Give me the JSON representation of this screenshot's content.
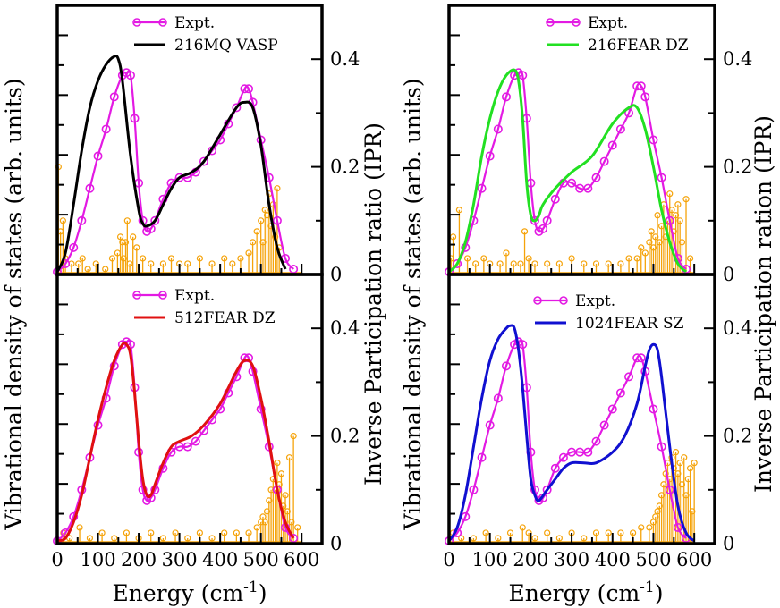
{
  "figure": {
    "ylabel_left_row": "Vibrational density of states (arb. units)",
    "ylabel_right_row": "Inverse Participation ratio (IPR)",
    "ylabel_right_row_alt": "Inverse Participation ration (IPR)",
    "xlabel_main": "Energy (cm",
    "xlabel_sup": "-1",
    "xlabel_close": ")"
  },
  "colors": {
    "expt": "#e31ae3",
    "mq_vasp": "#000000",
    "fear_216": "#22e022",
    "fear_512": "#e01010",
    "fear_1024": "#1010d0",
    "ipr": "#f5a30a"
  },
  "chart_data": [
    {
      "type": "line",
      "panel": "top-left",
      "xlim": [
        0,
        650
      ],
      "ylim_ipr": [
        0,
        0.5
      ],
      "x_ticks": [],
      "ipr_ticks": [
        "0",
        "0.2",
        "0.4"
      ],
      "legend": [
        "Expt.",
        "216MQ VASP"
      ],
      "series": [
        {
          "name": "Expt.",
          "color": "#e31ae3",
          "markers": true,
          "x": [
            0,
            20,
            40,
            60,
            80,
            100,
            120,
            140,
            160,
            170,
            180,
            190,
            200,
            210,
            220,
            230,
            240,
            260,
            280,
            300,
            320,
            340,
            360,
            380,
            400,
            420,
            440,
            460,
            470,
            480,
            500,
            520,
            540,
            560,
            580
          ],
          "y": [
            0.005,
            0.02,
            0.05,
            0.1,
            0.16,
            0.22,
            0.27,
            0.33,
            0.37,
            0.375,
            0.37,
            0.29,
            0.17,
            0.1,
            0.08,
            0.085,
            0.1,
            0.14,
            0.17,
            0.18,
            0.18,
            0.19,
            0.21,
            0.23,
            0.25,
            0.28,
            0.31,
            0.345,
            0.345,
            0.32,
            0.25,
            0.18,
            0.1,
            0.03,
            0.01
          ]
        },
        {
          "name": "216MQ VASP",
          "color": "#000000",
          "x": [
            0,
            20,
            40,
            60,
            80,
            100,
            120,
            140,
            150,
            160,
            180,
            200,
            210,
            220,
            240,
            260,
            280,
            300,
            330,
            360,
            400,
            440,
            460,
            480,
            500,
            520,
            540,
            560
          ],
          "y": [
            0.005,
            0.04,
            0.13,
            0.23,
            0.31,
            0.36,
            0.39,
            0.405,
            0.4,
            0.36,
            0.22,
            0.12,
            0.095,
            0.09,
            0.1,
            0.13,
            0.16,
            0.18,
            0.19,
            0.21,
            0.26,
            0.31,
            0.32,
            0.31,
            0.24,
            0.13,
            0.05,
            0.01
          ]
        }
      ],
      "ipr": {
        "x": [
          3,
          8,
          14,
          20,
          35,
          52,
          62,
          75,
          95,
          118,
          135,
          148,
          155,
          160,
          163,
          168,
          172,
          178,
          186,
          195,
          210,
          230,
          260,
          280,
          300,
          320,
          350,
          380,
          410,
          430,
          450,
          470,
          480,
          490,
          500,
          505,
          510,
          515,
          520,
          525,
          530,
          535,
          540,
          545
        ],
        "y": [
          0.2,
          0.08,
          0.1,
          0.03,
          0.02,
          0.02,
          0.03,
          0.01,
          0.02,
          0.01,
          0.03,
          0.04,
          0.07,
          0.06,
          0.03,
          0.06,
          0.1,
          0.02,
          0.07,
          0.05,
          0.03,
          0.02,
          0.02,
          0.03,
          0.02,
          0.02,
          0.03,
          0.02,
          0.03,
          0.02,
          0.03,
          0.04,
          0.06,
          0.08,
          0.1,
          0.06,
          0.12,
          0.11,
          0.15,
          0.09,
          0.13,
          0.07,
          0.16,
          0.05
        ]
      }
    },
    {
      "type": "line",
      "panel": "top-right",
      "xlim": [
        0,
        650
      ],
      "ylim_ipr": [
        0,
        0.5
      ],
      "x_ticks": [],
      "ipr_ticks": [
        "0",
        "0.2",
        "0.4"
      ],
      "legend": [
        "Expt.",
        "216FEAR DZ"
      ],
      "series": [
        {
          "name": "Expt.",
          "color": "#e31ae3",
          "markers": true,
          "x": [
            0,
            20,
            40,
            60,
            80,
            100,
            120,
            140,
            160,
            170,
            180,
            190,
            200,
            210,
            220,
            230,
            240,
            260,
            280,
            300,
            320,
            340,
            360,
            380,
            400,
            420,
            440,
            460,
            470,
            480,
            500,
            520,
            540,
            560,
            580
          ],
          "y": [
            0.005,
            0.02,
            0.05,
            0.1,
            0.16,
            0.22,
            0.27,
            0.33,
            0.37,
            0.375,
            0.37,
            0.29,
            0.17,
            0.1,
            0.08,
            0.085,
            0.1,
            0.14,
            0.17,
            0.17,
            0.16,
            0.16,
            0.18,
            0.21,
            0.24,
            0.27,
            0.3,
            0.35,
            0.35,
            0.33,
            0.25,
            0.18,
            0.1,
            0.03,
            0.01
          ]
        },
        {
          "name": "216FEAR DZ",
          "color": "#22e022",
          "x": [
            0,
            20,
            40,
            60,
            80,
            100,
            120,
            140,
            160,
            170,
            180,
            190,
            200,
            210,
            220,
            230,
            260,
            300,
            350,
            400,
            440,
            460,
            480,
            500,
            520,
            540,
            560,
            580
          ],
          "y": [
            0.005,
            0.02,
            0.06,
            0.13,
            0.22,
            0.29,
            0.34,
            0.37,
            0.38,
            0.36,
            0.29,
            0.17,
            0.11,
            0.1,
            0.11,
            0.13,
            0.16,
            0.19,
            0.22,
            0.28,
            0.31,
            0.31,
            0.27,
            0.2,
            0.12,
            0.06,
            0.02,
            0.005
          ]
        }
      ],
      "ipr": {
        "x": [
          5,
          10,
          25,
          45,
          65,
          85,
          100,
          125,
          140,
          158,
          175,
          185,
          195,
          210,
          240,
          270,
          300,
          330,
          360,
          390,
          420,
          440,
          460,
          470,
          480,
          490,
          495,
          500,
          505,
          510,
          515,
          520,
          525,
          530,
          535,
          540,
          545,
          550,
          555,
          560,
          565,
          570,
          580,
          590
        ],
        "y": [
          0.03,
          0.07,
          0.12,
          0.03,
          0.02,
          0.03,
          0.02,
          0.02,
          0.04,
          0.02,
          0.02,
          0.08,
          0.03,
          0.02,
          0.02,
          0.02,
          0.03,
          0.02,
          0.02,
          0.02,
          0.02,
          0.03,
          0.03,
          0.05,
          0.04,
          0.06,
          0.08,
          0.05,
          0.07,
          0.11,
          0.06,
          0.09,
          0.13,
          0.07,
          0.1,
          0.15,
          0.12,
          0.08,
          0.11,
          0.13,
          0.1,
          0.06,
          0.14,
          0.03
        ]
      }
    },
    {
      "type": "line",
      "panel": "bottom-left",
      "xlim": [
        0,
        650
      ],
      "ylim_ipr": [
        0,
        0.5
      ],
      "x_ticks": [
        "0",
        "100",
        "200",
        "300",
        "400",
        "500",
        "600"
      ],
      "ipr_ticks": [
        "0",
        "0.2",
        "0.4"
      ],
      "legend": [
        "Expt.",
        "512FEAR DZ"
      ],
      "series": [
        {
          "name": "Expt.",
          "color": "#e31ae3",
          "markers": true,
          "x": [
            0,
            20,
            40,
            60,
            80,
            100,
            120,
            140,
            160,
            170,
            180,
            190,
            200,
            210,
            220,
            230,
            240,
            260,
            280,
            300,
            320,
            340,
            360,
            380,
            400,
            420,
            440,
            460,
            470,
            480,
            500,
            520,
            540,
            560,
            580
          ],
          "y": [
            0.005,
            0.02,
            0.05,
            0.1,
            0.16,
            0.22,
            0.27,
            0.33,
            0.37,
            0.375,
            0.37,
            0.29,
            0.17,
            0.1,
            0.08,
            0.085,
            0.1,
            0.14,
            0.17,
            0.18,
            0.18,
            0.19,
            0.21,
            0.23,
            0.25,
            0.28,
            0.31,
            0.345,
            0.345,
            0.32,
            0.25,
            0.18,
            0.1,
            0.03,
            0.01
          ]
        },
        {
          "name": "512FEAR DZ",
          "color": "#e01010",
          "x": [
            0,
            20,
            40,
            60,
            80,
            100,
            120,
            140,
            160,
            170,
            180,
            190,
            200,
            210,
            220,
            230,
            240,
            260,
            280,
            300,
            330,
            360,
            400,
            440,
            460,
            480,
            500,
            520,
            540,
            560,
            580
          ],
          "y": [
            0.005,
            0.01,
            0.04,
            0.09,
            0.16,
            0.23,
            0.29,
            0.34,
            0.37,
            0.37,
            0.35,
            0.28,
            0.19,
            0.12,
            0.09,
            0.09,
            0.11,
            0.15,
            0.18,
            0.19,
            0.2,
            0.22,
            0.26,
            0.32,
            0.34,
            0.33,
            0.27,
            0.19,
            0.1,
            0.04,
            0.01
          ]
        }
      ],
      "ipr": {
        "x": [
          15,
          30,
          55,
          80,
          110,
          140,
          170,
          200,
          230,
          260,
          290,
          320,
          350,
          380,
          410,
          440,
          470,
          490,
          500,
          505,
          510,
          515,
          520,
          525,
          530,
          535,
          540,
          545,
          550,
          555,
          560,
          565,
          570,
          575,
          580,
          590
        ],
        "y": [
          0.02,
          0.01,
          0.03,
          0.01,
          0.02,
          0.01,
          0.02,
          0.01,
          0.02,
          0.01,
          0.02,
          0.01,
          0.02,
          0.01,
          0.02,
          0.02,
          0.02,
          0.03,
          0.04,
          0.05,
          0.04,
          0.06,
          0.08,
          0.1,
          0.12,
          0.1,
          0.15,
          0.11,
          0.13,
          0.07,
          0.09,
          0.06,
          0.16,
          0.04,
          0.2,
          0.03
        ]
      }
    },
    {
      "type": "line",
      "panel": "bottom-right",
      "xlim": [
        0,
        650
      ],
      "ylim_ipr": [
        0,
        0.5
      ],
      "x_ticks": [
        "0",
        "100",
        "200",
        "300",
        "400",
        "500",
        "600"
      ],
      "ipr_ticks": [
        "0",
        "0.2",
        "0.4"
      ],
      "legend": [
        "Expt.",
        "1024FEAR SZ"
      ],
      "series": [
        {
          "name": "Expt.",
          "color": "#e31ae3",
          "markers": true,
          "x": [
            0,
            20,
            40,
            60,
            80,
            100,
            120,
            140,
            160,
            170,
            180,
            190,
            200,
            210,
            220,
            230,
            240,
            260,
            280,
            300,
            320,
            340,
            360,
            380,
            400,
            420,
            440,
            460,
            470,
            480,
            500,
            520,
            540,
            560,
            580
          ],
          "y": [
            0.005,
            0.02,
            0.05,
            0.1,
            0.16,
            0.22,
            0.27,
            0.33,
            0.37,
            0.375,
            0.37,
            0.29,
            0.17,
            0.1,
            0.08,
            0.085,
            0.1,
            0.14,
            0.16,
            0.17,
            0.17,
            0.17,
            0.19,
            0.22,
            0.25,
            0.28,
            0.31,
            0.345,
            0.345,
            0.32,
            0.25,
            0.18,
            0.1,
            0.03,
            0.01
          ]
        },
        {
          "name": "1024FEAR SZ",
          "color": "#1010d0",
          "x": [
            0,
            20,
            40,
            60,
            80,
            100,
            120,
            140,
            150,
            160,
            170,
            180,
            190,
            200,
            210,
            220,
            240,
            260,
            280,
            300,
            330,
            360,
            400,
            430,
            460,
            480,
            490,
            500,
            510,
            520,
            540,
            560,
            580,
            600
          ],
          "y": [
            0.005,
            0.03,
            0.09,
            0.18,
            0.27,
            0.34,
            0.38,
            0.4,
            0.405,
            0.4,
            0.36,
            0.29,
            0.2,
            0.12,
            0.09,
            0.08,
            0.1,
            0.12,
            0.14,
            0.15,
            0.15,
            0.15,
            0.17,
            0.2,
            0.26,
            0.33,
            0.36,
            0.37,
            0.36,
            0.31,
            0.18,
            0.07,
            0.02,
            0.005
          ]
        }
      ],
      "ipr": {
        "x": [
          10,
          30,
          60,
          90,
          120,
          150,
          180,
          195,
          210,
          240,
          270,
          300,
          330,
          360,
          390,
          420,
          450,
          470,
          490,
          500,
          505,
          510,
          515,
          520,
          525,
          530,
          535,
          540,
          545,
          550,
          555,
          560,
          565,
          570,
          575,
          580,
          585,
          590,
          595,
          600
        ],
        "y": [
          0.02,
          0.01,
          0.01,
          0.02,
          0.01,
          0.02,
          0.03,
          0.02,
          0.01,
          0.02,
          0.01,
          0.02,
          0.01,
          0.02,
          0.02,
          0.02,
          0.02,
          0.03,
          0.03,
          0.04,
          0.05,
          0.06,
          0.07,
          0.09,
          0.11,
          0.13,
          0.15,
          0.12,
          0.16,
          0.14,
          0.17,
          0.13,
          0.15,
          0.11,
          0.16,
          0.09,
          0.12,
          0.14,
          0.06,
          0.15
        ]
      }
    }
  ]
}
